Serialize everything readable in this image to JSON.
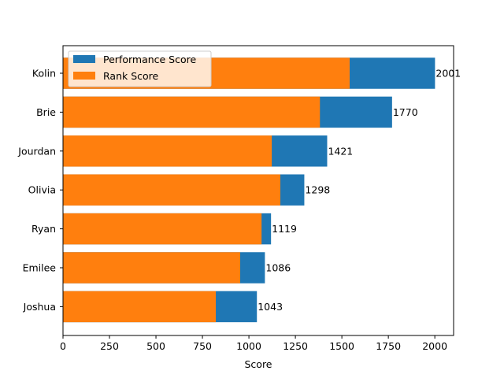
{
  "chart_data": {
    "type": "bar",
    "orientation": "horizontal",
    "stacked": false,
    "overlay": true,
    "title": "",
    "xlabel": "Score",
    "ylabel": "",
    "xlim": [
      0,
      2101
    ],
    "xticks": [
      0,
      250,
      500,
      750,
      1000,
      1250,
      1500,
      1750,
      2000
    ],
    "grid": false,
    "legend_position": "upper left",
    "categories": [
      "Kolin",
      "Brie",
      "Jourdan",
      "Olivia",
      "Ryan",
      "Emilee",
      "Joshua"
    ],
    "series": [
      {
        "name": "Performance Score",
        "color": "#1f77b4",
        "values": [
          2001,
          1770,
          1421,
          1298,
          1119,
          1086,
          1043
        ]
      },
      {
        "name": "Rank Score",
        "color": "#ff7f0e",
        "values": [
          1542,
          1382,
          1123,
          1169,
          1068,
          953,
          822
        ]
      }
    ],
    "bar_labels": [
      "2001",
      "1770",
      "1421",
      "1298",
      "1119",
      "1086",
      "1043"
    ]
  }
}
